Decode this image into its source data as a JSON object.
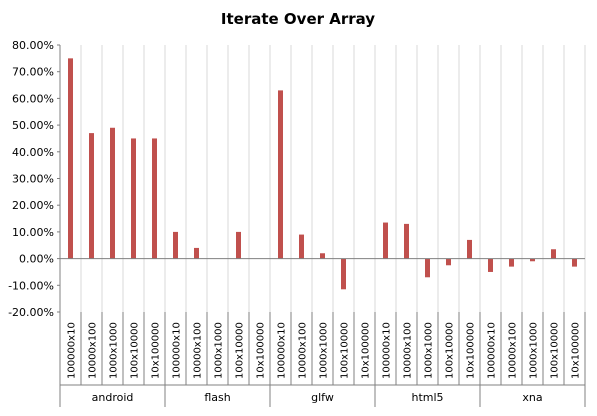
{
  "chart_data": {
    "type": "bar",
    "title": "Iterate Over Array",
    "xlabel": "",
    "ylabel": "",
    "ylim": [
      -0.2,
      0.8
    ],
    "yticks": [
      "80.00%",
      "70.00%",
      "60.00%",
      "50.00%",
      "40.00%",
      "30.00%",
      "20.00%",
      "10.00%",
      "0.00%",
      "-10.00%",
      "-20.00%"
    ],
    "grid": "vertical category separators",
    "legend": "none",
    "bar_color": "#C0504D",
    "groups": [
      "android",
      "flash",
      "glfw",
      "html5",
      "xna"
    ],
    "subcategories": [
      "100000x10",
      "10000x100",
      "1000x1000",
      "100x10000",
      "10x100000"
    ],
    "values": [
      [
        0.75,
        0.47,
        0.49,
        0.45,
        0.45
      ],
      [
        0.1,
        0.04,
        0.0,
        0.1,
        0.0
      ],
      [
        0.63,
        0.09,
        0.02,
        -0.115,
        0.0
      ],
      [
        0.135,
        0.13,
        -0.07,
        -0.025,
        0.07
      ],
      [
        -0.05,
        -0.03,
        -0.01,
        0.035,
        -0.03
      ]
    ]
  }
}
